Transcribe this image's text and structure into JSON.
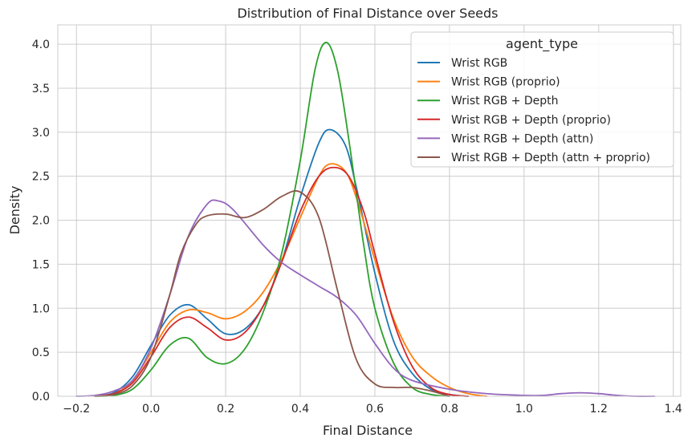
{
  "chart_data": {
    "type": "line",
    "subtype": "kde",
    "title": "Distribution of Final Distance over Seeds",
    "xlabel": "Final Distance",
    "ylabel": "Density",
    "xlim": [
      -0.25,
      1.42
    ],
    "ylim": [
      0,
      4.22
    ],
    "xticks": [
      -0.2,
      0.0,
      0.2,
      0.4,
      0.6,
      0.8,
      1.0,
      1.2,
      1.4
    ],
    "xtick_labels": [
      "−0.2",
      "0.0",
      "0.2",
      "0.4",
      "0.6",
      "0.8",
      "1.0",
      "1.2",
      "1.4"
    ],
    "yticks": [
      0.0,
      0.5,
      1.0,
      1.5,
      2.0,
      2.5,
      3.0,
      3.5,
      4.0
    ],
    "ytick_labels": [
      "0.0",
      "0.5",
      "1.0",
      "1.5",
      "2.0",
      "2.5",
      "3.0",
      "3.5",
      "4.0"
    ],
    "grid": true,
    "legend": {
      "title": "agent_type",
      "placement": "top-right"
    },
    "series": [
      {
        "name": "Wrist RGB",
        "color": "#1f77b4",
        "x": [
          -0.15,
          -0.1,
          -0.05,
          0.0,
          0.05,
          0.1,
          0.15,
          0.2,
          0.25,
          0.3,
          0.35,
          0.4,
          0.45,
          0.48,
          0.52,
          0.55,
          0.6,
          0.65,
          0.7,
          0.75,
          0.8,
          0.85
        ],
        "y": [
          0.0,
          0.04,
          0.22,
          0.58,
          0.92,
          1.04,
          0.88,
          0.71,
          0.76,
          1.02,
          1.53,
          2.26,
          2.88,
          3.03,
          2.86,
          2.38,
          1.4,
          0.63,
          0.26,
          0.08,
          0.02,
          0.0
        ]
      },
      {
        "name": "Wrist RGB (proprio)",
        "color": "#ff7f0e",
        "x": [
          -0.15,
          -0.1,
          -0.05,
          0.0,
          0.05,
          0.1,
          0.15,
          0.2,
          0.25,
          0.3,
          0.35,
          0.4,
          0.45,
          0.48,
          0.52,
          0.55,
          0.6,
          0.65,
          0.7,
          0.75,
          0.8,
          0.85,
          0.9
        ],
        "y": [
          0.0,
          0.03,
          0.17,
          0.5,
          0.84,
          0.98,
          0.95,
          0.88,
          0.96,
          1.18,
          1.55,
          2.03,
          2.5,
          2.64,
          2.56,
          2.26,
          1.55,
          0.88,
          0.45,
          0.23,
          0.1,
          0.03,
          0.0
        ]
      },
      {
        "name": "Wrist RGB + Depth",
        "color": "#2ca02c",
        "x": [
          -0.15,
          -0.1,
          -0.05,
          0.0,
          0.05,
          0.1,
          0.15,
          0.2,
          0.25,
          0.3,
          0.35,
          0.4,
          0.44,
          0.47,
          0.5,
          0.53,
          0.57,
          0.6,
          0.65,
          0.7,
          0.75,
          0.8
        ],
        "y": [
          0.0,
          0.01,
          0.08,
          0.3,
          0.58,
          0.66,
          0.44,
          0.37,
          0.53,
          0.95,
          1.62,
          2.68,
          3.72,
          4.02,
          3.7,
          2.92,
          1.72,
          1.0,
          0.38,
          0.1,
          0.02,
          0.0
        ]
      },
      {
        "name": "Wrist RGB + Depth (proprio)",
        "color": "#d62728",
        "x": [
          -0.15,
          -0.1,
          -0.05,
          0.0,
          0.05,
          0.1,
          0.15,
          0.2,
          0.25,
          0.3,
          0.35,
          0.4,
          0.45,
          0.49,
          0.53,
          0.57,
          0.6,
          0.65,
          0.7,
          0.75,
          0.8,
          0.85
        ],
        "y": [
          0.0,
          0.03,
          0.15,
          0.45,
          0.78,
          0.9,
          0.78,
          0.64,
          0.72,
          1.02,
          1.52,
          2.1,
          2.5,
          2.6,
          2.5,
          2.1,
          1.62,
          0.85,
          0.34,
          0.1,
          0.02,
          0.0
        ]
      },
      {
        "name": "Wrist RGB + Depth (attn)",
        "color": "#9467bd",
        "x": [
          -0.2,
          -0.15,
          -0.1,
          -0.05,
          0.0,
          0.05,
          0.1,
          0.15,
          0.18,
          0.22,
          0.3,
          0.35,
          0.4,
          0.45,
          0.5,
          0.55,
          0.6,
          0.65,
          0.7,
          0.8,
          0.9,
          1.0,
          1.05,
          1.1,
          1.15,
          1.2,
          1.25,
          1.3,
          1.35
        ],
        "y": [
          0.0,
          0.01,
          0.06,
          0.18,
          0.55,
          1.15,
          1.82,
          2.18,
          2.22,
          2.12,
          1.72,
          1.52,
          1.38,
          1.25,
          1.12,
          0.92,
          0.6,
          0.32,
          0.18,
          0.08,
          0.03,
          0.01,
          0.01,
          0.03,
          0.04,
          0.03,
          0.01,
          0.0,
          0.0
        ]
      },
      {
        "name": "Wrist RGB + Depth (attn + proprio)",
        "color": "#8c564b",
        "x": [
          -0.15,
          -0.1,
          -0.05,
          0.0,
          0.05,
          0.08,
          0.12,
          0.15,
          0.2,
          0.25,
          0.3,
          0.35,
          0.4,
          0.45,
          0.5,
          0.55,
          0.6,
          0.65,
          0.7,
          0.75,
          0.8
        ],
        "y": [
          0.0,
          0.02,
          0.12,
          0.45,
          1.15,
          1.62,
          1.95,
          2.05,
          2.07,
          2.03,
          2.12,
          2.27,
          2.32,
          2.03,
          1.2,
          0.42,
          0.14,
          0.1,
          0.1,
          0.06,
          0.0
        ]
      }
    ]
  }
}
